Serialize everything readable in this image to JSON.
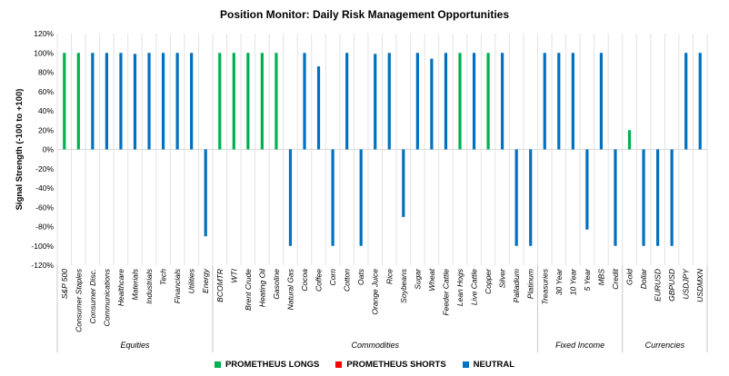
{
  "chart_data": {
    "type": "bar",
    "title": "Position Monitor: Daily Risk Management Opportunities",
    "ylabel": "Signal Strength (-100 to +100)",
    "ylim": [
      -120,
      120
    ],
    "yticks": [
      -120,
      -100,
      -80,
      -60,
      -40,
      -20,
      0,
      20,
      40,
      60,
      80,
      100,
      120
    ],
    "ytick_labels": [
      "-120%",
      "-100%",
      "-80%",
      "-60%",
      "-40%",
      "-20%",
      "0%",
      "20%",
      "40%",
      "60%",
      "80%",
      "100%",
      "120%"
    ],
    "grid": "vertical",
    "legend_position": "bottom",
    "categories": [
      "S&P 500",
      "Consumer Staples",
      "Consumer Disc.",
      "Communications",
      "Healthcare",
      "Materials",
      "Industrials",
      "Tech",
      "Financials",
      "Utilities",
      "Energy",
      "BCOMTR",
      "WTI",
      "Brent Crude",
      "Heating Oil",
      "Gasoline",
      "Natural Gas",
      "Cocoa",
      "Coffee",
      "Corn",
      "Cotton",
      "Oats",
      "Orange Juice",
      "Rice",
      "Soybeans",
      "Sugar",
      "Wheat",
      "Feeder Cattle",
      "Lean Hogs",
      "Live Cattle",
      "Copper",
      "Silver",
      "Palladium",
      "Platinum",
      "Treasuries",
      "30 Year",
      "10 Year",
      "5 Year",
      "MBS",
      "Credit",
      "Gold",
      "Dollar",
      "EURUSD",
      "GBPUSD",
      "USDJPY",
      "USDMXN"
    ],
    "groups": [
      {
        "name": "Equities",
        "count": 11
      },
      {
        "name": "Commodities",
        "count": 23
      },
      {
        "name": "Fixed Income",
        "count": 6
      },
      {
        "name": "Currencies",
        "count": 6
      }
    ],
    "series": [
      {
        "name": "PROMETHEUS LONGS",
        "color": "#00b050",
        "values": [
          100,
          100,
          0,
          0,
          0,
          0,
          0,
          0,
          0,
          0,
          0,
          100,
          100,
          100,
          100,
          100,
          0,
          0,
          0,
          0,
          0,
          0,
          0,
          0,
          0,
          0,
          0,
          0,
          100,
          0,
          100,
          0,
          0,
          0,
          0,
          0,
          0,
          0,
          0,
          0,
          20,
          0,
          0,
          0,
          0,
          0
        ]
      },
      {
        "name": "PROMETHEUS SHORTS",
        "color": "#ff0000",
        "values": [
          0,
          0,
          0,
          0,
          0,
          0,
          0,
          0,
          0,
          0,
          0,
          0,
          0,
          0,
          0,
          0,
          0,
          0,
          0,
          0,
          0,
          0,
          0,
          0,
          0,
          0,
          0,
          0,
          0,
          0,
          0,
          0,
          0,
          0,
          0,
          0,
          0,
          0,
          0,
          0,
          0,
          0,
          0,
          0,
          0,
          0
        ]
      },
      {
        "name": "NEUTRAL",
        "color": "#0070c0",
        "values": [
          0,
          0,
          100,
          100,
          100,
          99,
          100,
          100,
          100,
          100,
          -90,
          0,
          0,
          0,
          0,
          0,
          -100,
          100,
          86,
          -100,
          100,
          -100,
          99,
          100,
          -70,
          100,
          94,
          100,
          0,
          100,
          0,
          100,
          -100,
          -100,
          100,
          100,
          100,
          -83,
          100,
          -100,
          0,
          -100,
          -100,
          -100,
          100,
          100
        ]
      }
    ]
  }
}
